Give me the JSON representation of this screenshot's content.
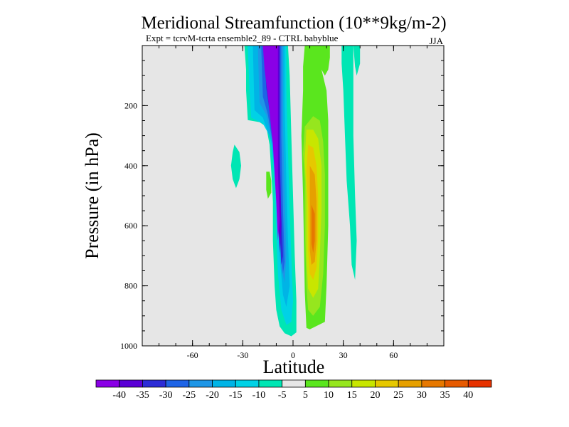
{
  "chart_data": {
    "type": "heatmap",
    "title": "Meridional Streamfunction (10**9kg/m-2)",
    "subtitle_left": "Expt = tcrvM-tcrta ensemble2_89 - CTRL babyblue",
    "subtitle_right": "JJA",
    "xlabel": "Latitude",
    "ylabel": "Pressure (in hPa)",
    "xlim": [
      -90,
      90
    ],
    "ylim": [
      0,
      1000
    ],
    "y_inverted": true,
    "x_ticks": [
      {
        "value": -60,
        "label": "-60"
      },
      {
        "value": -30,
        "label": "-30"
      },
      {
        "value": 0,
        "label": "0"
      },
      {
        "value": 30,
        "label": "30"
      },
      {
        "value": 60,
        "label": "60"
      }
    ],
    "y_ticks": [
      {
        "value": 200,
        "label": "200"
      },
      {
        "value": 400,
        "label": "400"
      },
      {
        "value": 600,
        "label": "600"
      },
      {
        "value": 800,
        "label": "800"
      },
      {
        "value": 1000,
        "label": "1000"
      }
    ],
    "background_color": "#e6e6e6",
    "colorbar": {
      "colors": [
        "#8a00e6",
        "#5a00d6",
        "#2c2cd6",
        "#1e64e6",
        "#1e96e6",
        "#00b4e6",
        "#00d2e6",
        "#00e6b4",
        "#e6e6e6",
        "#5ae61e",
        "#96e61e",
        "#c8e600",
        "#e6c800",
        "#e6a000",
        "#e67800",
        "#e65a00",
        "#e63200"
      ],
      "labels": [
        "-40",
        "-35",
        "-30",
        "-25",
        "-20",
        "-15",
        "-10",
        "-5",
        "5",
        "10",
        "15",
        "20",
        "25",
        "30",
        "35",
        "40"
      ]
    },
    "contours": [
      {
        "name": "neg-outer",
        "level": -5,
        "color": "#00e6b4",
        "points": [
          [
            -10,
            1
          ],
          [
            -3,
            1
          ],
          [
            -2,
            100
          ],
          [
            -1,
            300
          ],
          [
            0,
            500
          ],
          [
            1,
            700
          ],
          [
            2,
            850
          ],
          [
            2,
            955
          ],
          [
            -1,
            968
          ],
          [
            -5,
            958
          ],
          [
            -8,
            935
          ],
          [
            -10,
            880
          ],
          [
            -11,
            800
          ],
          [
            -12,
            650
          ],
          [
            -12,
            520
          ],
          [
            -13,
            420
          ],
          [
            -14,
            330
          ],
          [
            -16,
            270
          ],
          [
            -20,
            255
          ],
          [
            -27,
            248
          ],
          [
            -28,
            150
          ],
          [
            -28,
            80
          ],
          [
            -29,
            1
          ]
        ]
      },
      {
        "name": "neg-inner",
        "level": -10,
        "color": "#00d2e6",
        "points": [
          [
            -11,
            1
          ],
          [
            -4,
            1
          ],
          [
            -4,
            150
          ],
          [
            -3,
            350
          ],
          [
            -2,
            550
          ],
          [
            -1,
            700
          ],
          [
            0,
            850
          ],
          [
            -1,
            920
          ],
          [
            -4,
            930
          ],
          [
            -7,
            880
          ],
          [
            -9,
            760
          ],
          [
            -10,
            620
          ],
          [
            -11,
            480
          ],
          [
            -12,
            380
          ],
          [
            -14,
            300
          ],
          [
            -18,
            260
          ],
          [
            -25,
            240
          ],
          [
            -26,
            150
          ],
          [
            -27,
            1
          ]
        ]
      },
      {
        "name": "neg-15",
        "level": -15,
        "color": "#00b4e6",
        "points": [
          [
            -12,
            1
          ],
          [
            -5,
            1
          ],
          [
            -5,
            200
          ],
          [
            -4,
            450
          ],
          [
            -3,
            650
          ],
          [
            -2,
            800
          ],
          [
            -4,
            870
          ],
          [
            -6,
            830
          ],
          [
            -8,
            700
          ],
          [
            -9,
            560
          ],
          [
            -11,
            420
          ],
          [
            -13,
            320
          ],
          [
            -18,
            240
          ],
          [
            -23,
            215
          ],
          [
            -24,
            1
          ]
        ]
      },
      {
        "name": "neg-20",
        "level": -20,
        "color": "#1e96e6",
        "points": [
          [
            -13,
            1
          ],
          [
            -6,
            1
          ],
          [
            -6,
            260
          ],
          [
            -5,
            500
          ],
          [
            -4,
            700
          ],
          [
            -5,
            790
          ],
          [
            -7,
            740
          ],
          [
            -8,
            600
          ],
          [
            -10,
            460
          ],
          [
            -12,
            330
          ],
          [
            -16,
            230
          ],
          [
            -20,
            190
          ],
          [
            -21,
            1
          ]
        ]
      },
      {
        "name": "neg-25",
        "level": -25,
        "color": "#1e64e6",
        "points": [
          [
            -14,
            1
          ],
          [
            -7,
            1
          ],
          [
            -7,
            300
          ],
          [
            -6,
            550
          ],
          [
            -5,
            720
          ],
          [
            -6,
            760
          ],
          [
            -7,
            690
          ],
          [
            -9,
            520
          ],
          [
            -11,
            360
          ],
          [
            -15,
            230
          ],
          [
            -18,
            170
          ],
          [
            -19,
            1
          ]
        ]
      },
      {
        "name": "neg-30",
        "level": -30,
        "color": "#2c2cd6",
        "points": [
          [
            -15,
            1
          ],
          [
            -8,
            1
          ],
          [
            -8,
            340
          ],
          [
            -7,
            560
          ],
          [
            -6,
            700
          ],
          [
            -7,
            730
          ],
          [
            -8,
            620
          ],
          [
            -10,
            430
          ],
          [
            -13,
            260
          ],
          [
            -16,
            140
          ],
          [
            -17,
            1
          ]
        ]
      },
      {
        "name": "neg-35",
        "level": -35,
        "color": "#5a00d6",
        "points": [
          [
            -16,
            1
          ],
          [
            -8,
            1
          ],
          [
            -8,
            380
          ],
          [
            -7,
            600
          ],
          [
            -8,
            690
          ],
          [
            -9,
            560
          ],
          [
            -11,
            380
          ],
          [
            -14,
            210
          ],
          [
            -16,
            110
          ],
          [
            -17,
            1
          ]
        ]
      },
      {
        "name": "neg-40",
        "level": -40,
        "color": "#8a00e6",
        "points": [
          [
            -18,
            1
          ],
          [
            -9,
            1
          ],
          [
            -9,
            420
          ],
          [
            -8,
            580
          ],
          [
            -9,
            650
          ],
          [
            -10,
            520
          ],
          [
            -12,
            330
          ],
          [
            -15,
            170
          ],
          [
            -17,
            80
          ]
        ]
      },
      {
        "name": "neg-left-small",
        "level": -5,
        "color": "#00e6b4",
        "points": [
          [
            -35,
            330
          ],
          [
            -32,
            355
          ],
          [
            -31,
            400
          ],
          [
            -32,
            445
          ],
          [
            -34,
            475
          ],
          [
            -36,
            445
          ],
          [
            -37,
            400
          ],
          [
            -36,
            355
          ]
        ]
      },
      {
        "name": "pos-small-green",
        "level": 10,
        "color": "#5ae61e",
        "points": [
          [
            -16,
            420
          ],
          [
            -14,
            420
          ],
          [
            -13,
            450
          ],
          [
            -13,
            490
          ],
          [
            -15,
            510
          ],
          [
            -16,
            480
          ]
        ]
      },
      {
        "name": "pos-column",
        "level": 10,
        "color": "#5ae61e",
        "points": [
          [
            8,
            1
          ],
          [
            17,
            1
          ],
          [
            17,
            80
          ],
          [
            20,
            150
          ],
          [
            21,
            250
          ],
          [
            21,
            400
          ],
          [
            21,
            600
          ],
          [
            20,
            800
          ],
          [
            19,
            920
          ],
          [
            10,
            945
          ],
          [
            8,
            940
          ],
          [
            7,
            820
          ],
          [
            6,
            500
          ],
          [
            5,
            300
          ],
          [
            6,
            150
          ],
          [
            6,
            70
          ],
          [
            7,
            1
          ]
        ]
      },
      {
        "name": "pos-15",
        "level": 15,
        "color": "#96e61e",
        "points": [
          [
            7,
            270
          ],
          [
            12,
            235
          ],
          [
            16,
            250
          ],
          [
            18,
            320
          ],
          [
            19,
            430
          ],
          [
            19,
            600
          ],
          [
            18,
            760
          ],
          [
            16,
            870
          ],
          [
            12,
            900
          ],
          [
            9,
            880
          ],
          [
            8,
            800
          ],
          [
            7,
            600
          ],
          [
            7,
            450
          ],
          [
            6,
            360
          ]
        ]
      },
      {
        "name": "pos-20",
        "level": 20,
        "color": "#c8e600",
        "points": [
          [
            8,
            280
          ],
          [
            12,
            280
          ],
          [
            15,
            310
          ],
          [
            17,
            400
          ],
          [
            17,
            550
          ],
          [
            16,
            700
          ],
          [
            15,
            810
          ],
          [
            12,
            840
          ],
          [
            9,
            810
          ],
          [
            8,
            700
          ],
          [
            8,
            500
          ],
          [
            7,
            380
          ]
        ]
      },
      {
        "name": "pos-25",
        "level": 25,
        "color": "#e6c800",
        "points": [
          [
            9,
            330
          ],
          [
            12,
            340
          ],
          [
            14,
            400
          ],
          [
            15,
            500
          ],
          [
            15,
            640
          ],
          [
            14,
            740
          ],
          [
            12,
            780
          ],
          [
            10,
            760
          ],
          [
            9,
            680
          ],
          [
            9,
            540
          ],
          [
            8,
            420
          ]
        ]
      },
      {
        "name": "pos-30",
        "level": 30,
        "color": "#e6a000",
        "points": [
          [
            10,
            400
          ],
          [
            13,
            430
          ],
          [
            14,
            520
          ],
          [
            14,
            650
          ],
          [
            13,
            720
          ],
          [
            11,
            730
          ],
          [
            10,
            680
          ],
          [
            10,
            560
          ]
        ]
      },
      {
        "name": "pos-35",
        "level": 35,
        "color": "#e67800",
        "points": [
          [
            11,
            530
          ],
          [
            13,
            560
          ],
          [
            13,
            650
          ],
          [
            12,
            690
          ],
          [
            11,
            660
          ],
          [
            11,
            600
          ]
        ]
      },
      {
        "name": "pos-upper-green",
        "level": 5,
        "color": "#5ae61e",
        "points": [
          [
            17,
            1
          ],
          [
            22,
            1
          ],
          [
            22,
            40
          ],
          [
            21,
            80
          ],
          [
            19,
            100
          ],
          [
            17,
            80
          ]
        ]
      },
      {
        "name": "pos-right-teal",
        "level": -5,
        "color": "#00e6b4",
        "points": [
          [
            29,
            1
          ],
          [
            36,
            1
          ],
          [
            36,
            150
          ],
          [
            36,
            300
          ],
          [
            37,
            500
          ],
          [
            38,
            650
          ],
          [
            37,
            780
          ],
          [
            35,
            730
          ],
          [
            34,
            600
          ],
          [
            32,
            450
          ],
          [
            31,
            300
          ],
          [
            30,
            150
          ],
          [
            29,
            60
          ]
        ]
      },
      {
        "name": "pos-teal-right2",
        "level": -5,
        "color": "#00e6b4",
        "points": [
          [
            36,
            1
          ],
          [
            40,
            1
          ],
          [
            40,
            60
          ],
          [
            38,
            100
          ],
          [
            37,
            70
          ]
        ]
      }
    ]
  }
}
